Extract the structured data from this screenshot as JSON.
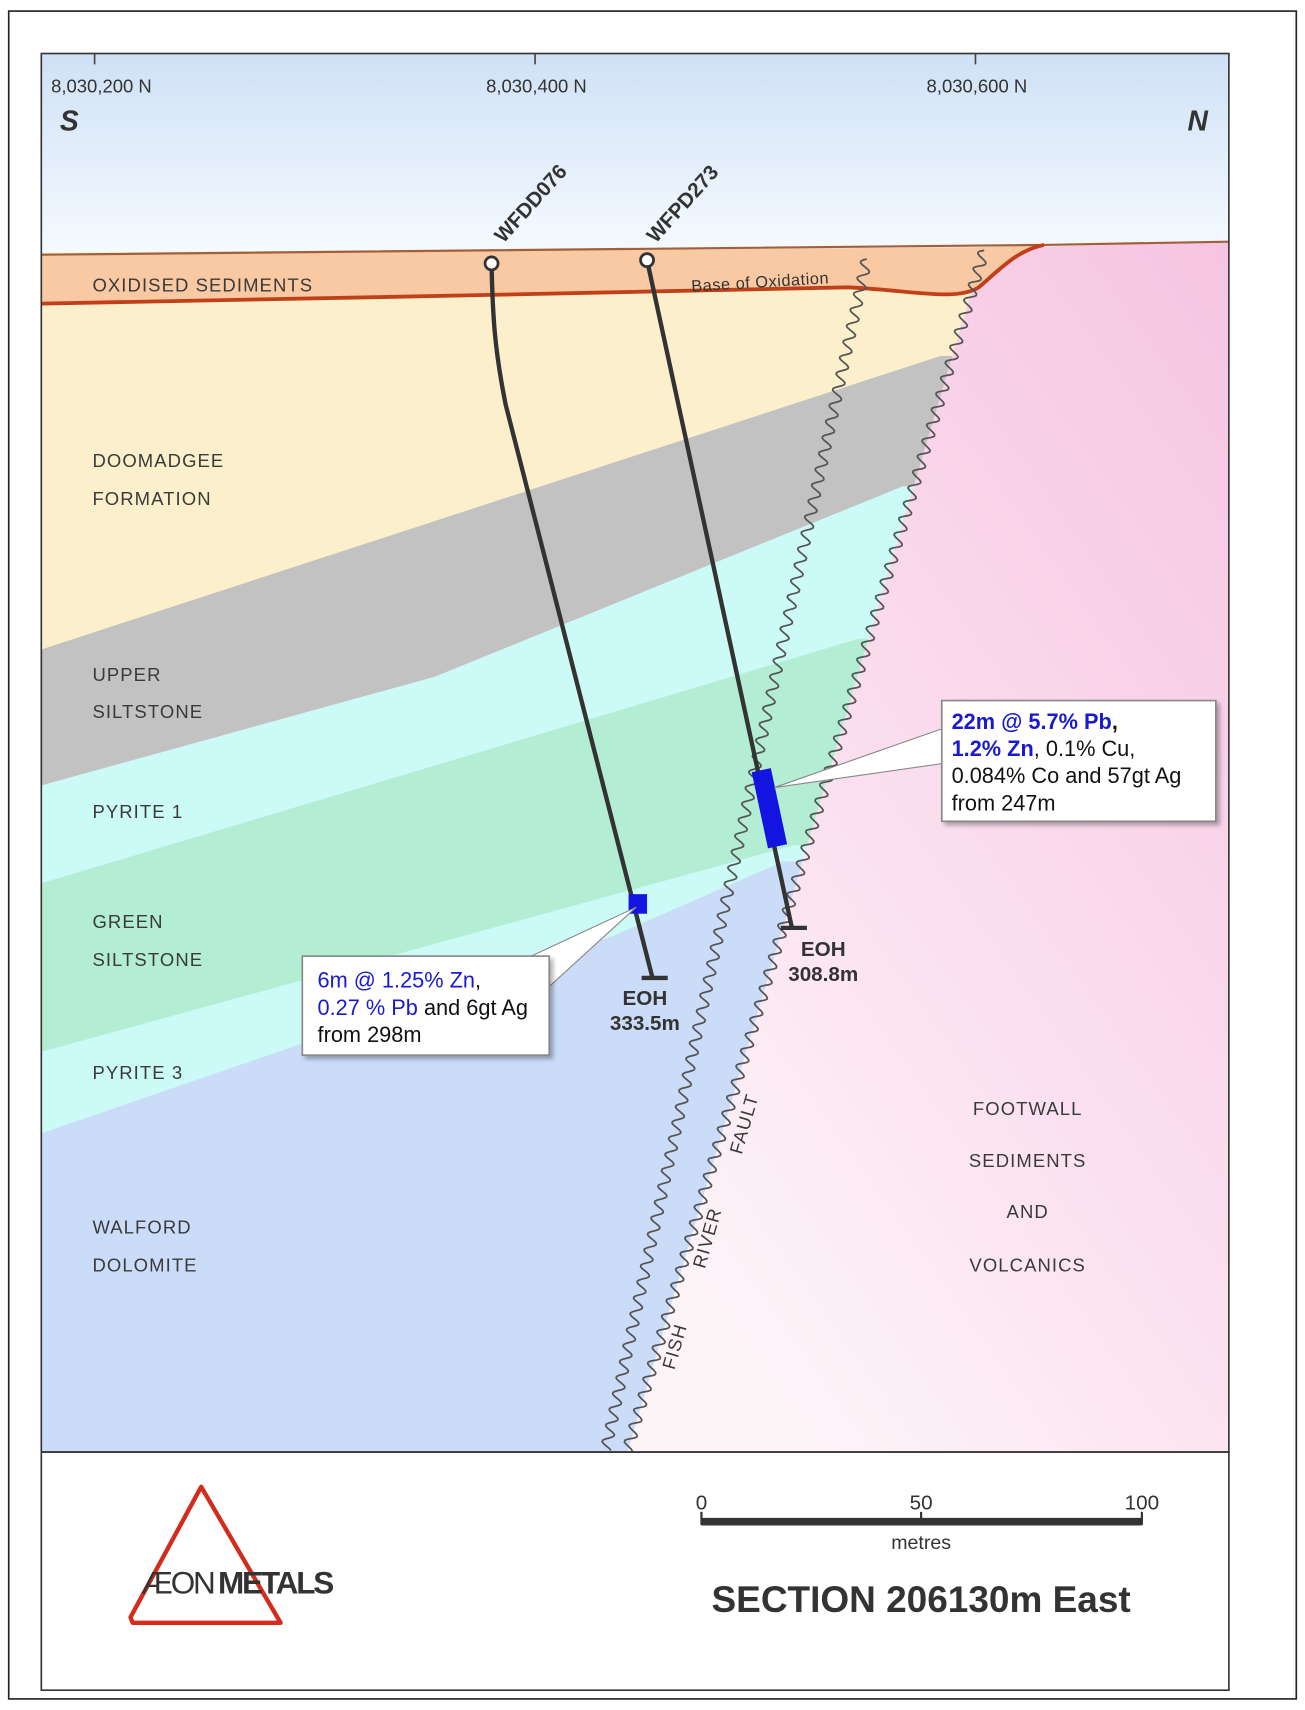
{
  "header": {
    "northings": [
      "8,030,200 N",
      "8,030,400 N",
      "8,030,600 N"
    ],
    "south": "S",
    "north": "N"
  },
  "drillholes": [
    {
      "name": "WFDD076",
      "eoh": "EOH",
      "depth": "333.5m"
    },
    {
      "name": "WFPD273",
      "eoh": "EOH",
      "depth": "308.8m"
    }
  ],
  "intercepts": [
    {
      "lines": [
        [
          "6m @ 1.25% Zn",
          ","
        ],
        [
          "0.27 % Pb",
          " and 6gt Ag"
        ],
        [
          "from 298m"
        ]
      ]
    },
    {
      "lines": [
        [
          "22m @ 5.7% Pb",
          ","
        ],
        [
          "1.2% Zn",
          ", 0.1% Cu,"
        ],
        [
          "0.084% Co and 57gt Ag"
        ],
        [
          "from 247m"
        ]
      ]
    }
  ],
  "oxidation": {
    "label": "OXIDISED SEDIMENTS",
    "base": "Base of Oxidation"
  },
  "layers": [
    [
      "DOOMADGEE",
      "FORMATION"
    ],
    [
      "UPPER",
      "SILTSTONE"
    ],
    [
      "PYRITE 1"
    ],
    [
      "GREEN",
      "SILTSTONE"
    ],
    [
      "PYRITE 3"
    ],
    [
      "WALFORD",
      "DOLOMITE"
    ]
  ],
  "fault": [
    "FISH",
    "RIVER",
    "FAULT"
  ],
  "footwall": [
    "FOOTWALL",
    "SEDIMENTS",
    "AND",
    "VOLCANICS"
  ],
  "scale": {
    "ticks": [
      "0",
      "50",
      "100"
    ],
    "unit": "metres"
  },
  "title": "SECTION 206130m East",
  "logo": [
    "ÆON",
    "METALS"
  ]
}
